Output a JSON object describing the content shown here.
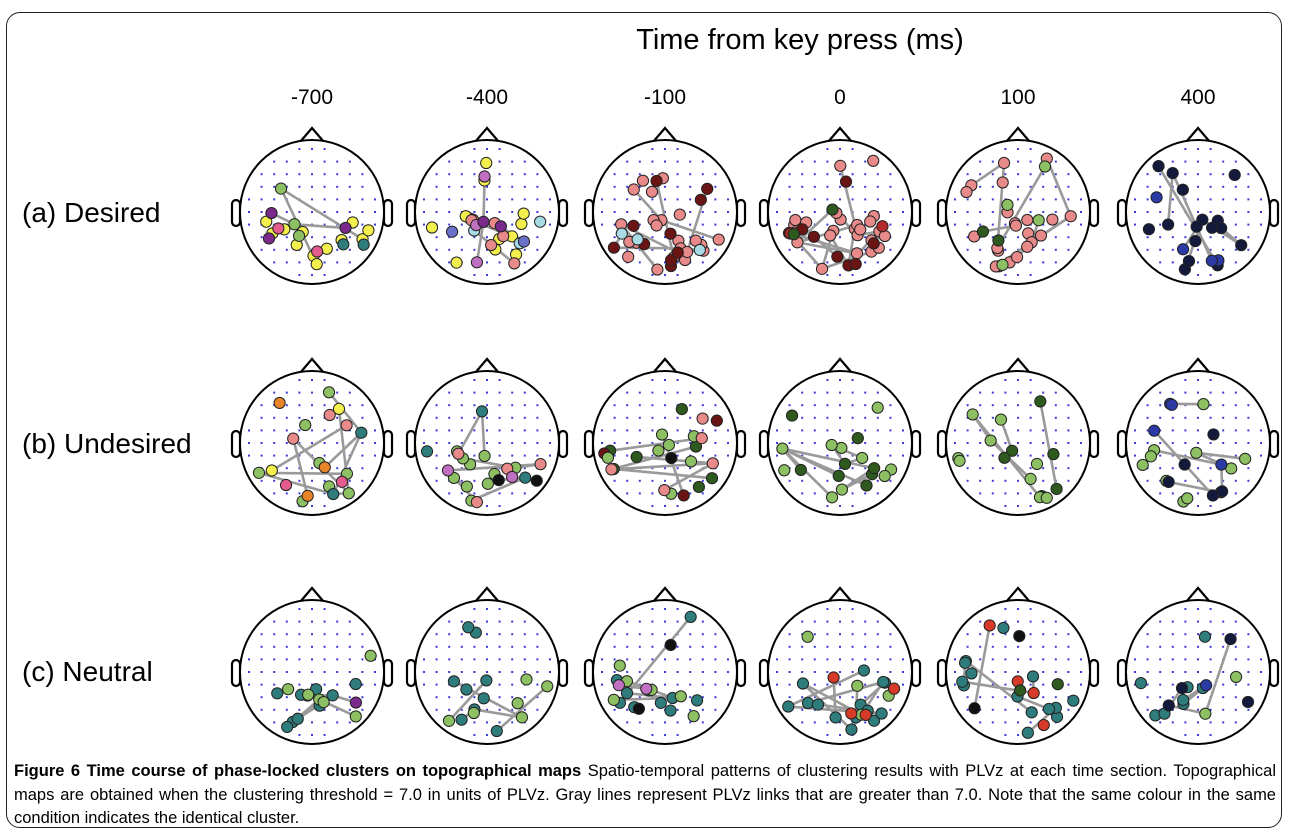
{
  "figure": {
    "x_title": "Time from key press (ms)",
    "time_labels": [
      "-700",
      "-400",
      "-100",
      "0",
      "100",
      "400"
    ],
    "condition_labels": [
      "(a) Desired",
      "(b) Undesired",
      "(c) Neutral"
    ]
  },
  "caption": {
    "title": "Figure 6 Time course of phase-locked clusters on topographical maps",
    "text": " Spatio-temporal patterns of clustering results with PLVz at each time section. Topographical maps are obtained when the clustering threshold = 7.0 in units of PLVz. Gray lines represent PLVz links that are greater than 7.0. Note that the same colour in the same condition indicates the identical cluster."
  },
  "colors": {
    "electrode_dot": "#3a3ad8",
    "link_line": "#9a9a9a",
    "head_outline": "#000000",
    "yellow": "#f3ef4c",
    "pink": "#e45b8e",
    "salmon": "#e88a8a",
    "dark_red": "#6b1414",
    "light_blue": "#a8dbe6",
    "teal": "#2f7c7c",
    "light_green": "#8cc063",
    "dark_green": "#2f5a1f",
    "purple": "#7a2a8a",
    "navy": "#141a3c",
    "blue": "#2b3aa5",
    "orange": "#e8842a",
    "red": "#d83a2a",
    "black": "#111111"
  },
  "panels": [
    {
      "condition": "(a) Desired",
      "time": "-700",
      "clusters": [
        [
          "#f3ef4c",
          12
        ],
        [
          "#e45b8e",
          2
        ],
        [
          "#2f7c7c",
          2
        ],
        [
          "#8cc063",
          3
        ],
        [
          "#7a2a8a",
          3
        ]
      ],
      "links": 6
    },
    {
      "condition": "(a) Desired",
      "time": "-400",
      "clusters": [
        [
          "#f3ef4c",
          12
        ],
        [
          "#e88a8a",
          6
        ],
        [
          "#a8dbe6",
          3
        ],
        [
          "#c070c0",
          3
        ],
        [
          "#7a2a8a",
          2
        ],
        [
          "#6a70c8",
          2
        ]
      ],
      "links": 8
    },
    {
      "condition": "(a) Desired",
      "time": "-100",
      "clusters": [
        [
          "#e88a8a",
          22
        ],
        [
          "#6b1414",
          10
        ],
        [
          "#a8dbe6",
          3
        ]
      ],
      "links": 14
    },
    {
      "condition": "(a) Desired",
      "time": "0",
      "clusters": [
        [
          "#e88a8a",
          24
        ],
        [
          "#6b1414",
          8
        ],
        [
          "#b52a2a",
          2
        ],
        [
          "#2f5a1f",
          2
        ]
      ],
      "links": 16
    },
    {
      "condition": "(a) Desired",
      "time": "100",
      "clusters": [
        [
          "#e88a8a",
          22
        ],
        [
          "#8cc063",
          4
        ],
        [
          "#2f5a1f",
          2
        ]
      ],
      "links": 12
    },
    {
      "condition": "(a) Desired",
      "time": "400",
      "clusters": [
        [
          "#141a3c",
          16
        ],
        [
          "#2b3aa5",
          4
        ]
      ],
      "links": 8
    },
    {
      "condition": "(b) Undesired",
      "time": "-700",
      "clusters": [
        [
          "#8cc063",
          8
        ],
        [
          "#2f7c7c",
          2
        ],
        [
          "#e45b8e",
          2
        ],
        [
          "#e8842a",
          3
        ],
        [
          "#f3ef4c",
          2
        ],
        [
          "#e88a8a",
          3
        ]
      ],
      "links": 10
    },
    {
      "condition": "(b) Undesired",
      "time": "-400",
      "clusters": [
        [
          "#8cc063",
          10
        ],
        [
          "#2f7c7c",
          3
        ],
        [
          "#e88a8a",
          4
        ],
        [
          "#111111",
          2
        ],
        [
          "#c070c0",
          2
        ]
      ],
      "links": 10
    },
    {
      "condition": "(b) Undesired",
      "time": "-100",
      "clusters": [
        [
          "#2f5a1f",
          7
        ],
        [
          "#6b1414",
          3
        ],
        [
          "#8cc063",
          7
        ],
        [
          "#e88a8a",
          5
        ],
        [
          "#111111",
          1
        ]
      ],
      "links": 8
    },
    {
      "condition": "(b) Undesired",
      "time": "0",
      "clusters": [
        [
          "#2f5a1f",
          8
        ],
        [
          "#8cc063",
          10
        ]
      ],
      "links": 10
    },
    {
      "condition": "(b) Undesired",
      "time": "100",
      "clusters": [
        [
          "#2f5a1f",
          6
        ],
        [
          "#8cc063",
          9
        ]
      ],
      "links": 8
    },
    {
      "condition": "(b) Undesired",
      "time": "400",
      "clusters": [
        [
          "#8cc063",
          11
        ],
        [
          "#141a3c",
          5
        ],
        [
          "#2b3aa5",
          4
        ]
      ],
      "links": 8
    },
    {
      "condition": "(c) Neutral",
      "time": "-700",
      "clusters": [
        [
          "#2f7c7c",
          10
        ],
        [
          "#8cc063",
          6
        ],
        [
          "#7a2a8a",
          1
        ]
      ],
      "links": 8
    },
    {
      "condition": "(c) Neutral",
      "time": "-400",
      "clusters": [
        [
          "#2f7c7c",
          9
        ],
        [
          "#8cc063",
          6
        ]
      ],
      "links": 6
    },
    {
      "condition": "(c) Neutral",
      "time": "-100",
      "clusters": [
        [
          "#2f7c7c",
          10
        ],
        [
          "#8cc063",
          6
        ],
        [
          "#111111",
          2
        ],
        [
          "#c070c0",
          2
        ]
      ],
      "links": 8
    },
    {
      "condition": "(c) Neutral",
      "time": "0",
      "clusters": [
        [
          "#2f7c7c",
          14
        ],
        [
          "#8cc063",
          4
        ],
        [
          "#d83a2a",
          4
        ]
      ],
      "links": 10
    },
    {
      "condition": "(c) Neutral",
      "time": "100",
      "clusters": [
        [
          "#2f7c7c",
          14
        ],
        [
          "#d83a2a",
          4
        ],
        [
          "#2f5a1f",
          2
        ],
        [
          "#111111",
          2
        ]
      ],
      "links": 8
    },
    {
      "condition": "(c) Neutral",
      "time": "400",
      "clusters": [
        [
          "#2f7c7c",
          8
        ],
        [
          "#141a3c",
          4
        ],
        [
          "#8cc063",
          2
        ],
        [
          "#2b3aa5",
          1
        ]
      ],
      "links": 6
    }
  ]
}
